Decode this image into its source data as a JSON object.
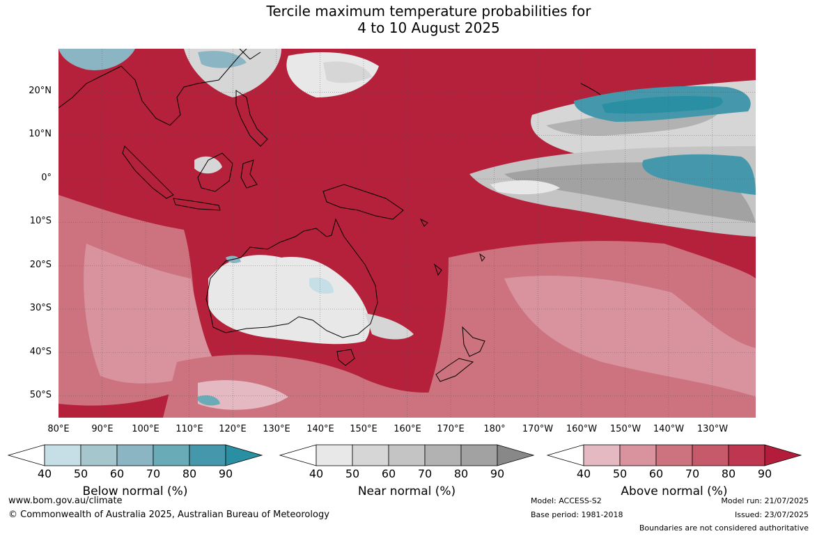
{
  "title_line1": "Tercile maximum temperature probabilities for",
  "title_line2": "4 to 10 August 2025",
  "map": {
    "lon_range": [
      80,
      240
    ],
    "lat_range": [
      -55,
      30
    ],
    "lat_ticks": [
      20,
      10,
      0,
      -10,
      -20,
      -30,
      -40,
      -50
    ],
    "lat_labels": [
      "20°N",
      "10°N",
      "0°",
      "10°S",
      "20°S",
      "30°S",
      "40°S",
      "50°S"
    ],
    "lon_ticks": [
      80,
      90,
      100,
      110,
      120,
      130,
      140,
      150,
      160,
      170,
      180,
      190,
      200,
      210,
      220,
      230
    ],
    "lon_labels": [
      "80°E",
      "90°E",
      "100°E",
      "110°E",
      "120°E",
      "130°E",
      "140°E",
      "150°E",
      "160°E",
      "170°E",
      "180°",
      "170°W",
      "160°W",
      "150°W",
      "140°W",
      "130°W"
    ],
    "dominant_color": "#b5203a"
  },
  "colorbars": [
    {
      "name": "Below normal (%)",
      "ticks": [
        "40",
        "50",
        "60",
        "70",
        "80",
        "90"
      ],
      "colors": [
        "#ffffff",
        "#c6dfe6",
        "#a6c6cd",
        "#8cb5c3",
        "#6aabb8",
        "#4598ab",
        "#2a8fa3"
      ]
    },
    {
      "name": "Near normal (%)",
      "ticks": [
        "40",
        "50",
        "60",
        "70",
        "80",
        "90"
      ],
      "colors": [
        "#ffffff",
        "#e8e8e8",
        "#d6d6d6",
        "#c4c4c4",
        "#b2b2b2",
        "#a2a2a2",
        "#888888"
      ]
    },
    {
      "name": "Above normal (%)",
      "ticks": [
        "40",
        "50",
        "60",
        "70",
        "80",
        "90"
      ],
      "colors": [
        "#ffffff",
        "#e4b9c1",
        "#d8939e",
        "#cd737f",
        "#c65a6a",
        "#bf3650",
        "#b31d3b"
      ]
    }
  ],
  "footer": {
    "url": "www.bom.gov.au/climate",
    "copyright": "© Commonwealth of Australia 2025, Australian Bureau of Meteorology",
    "model": "Model: ACCESS-S2",
    "base_period": "Base period: 1981-2018",
    "model_run": "Model run: 21/07/2025",
    "issued": "Issued: 23/07/2025",
    "disclaimer": "Boundaries are not considered authoritative"
  }
}
